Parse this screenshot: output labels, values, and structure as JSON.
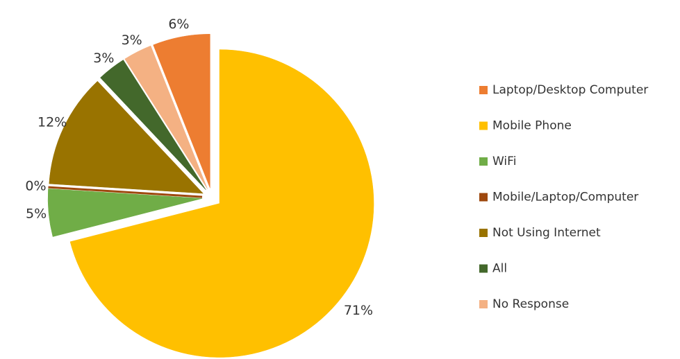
{
  "chart_data": {
    "type": "pie",
    "categories": [
      "Laptop/Desktop Computer",
      "Mobile Phone",
      "WiFi",
      "Mobile/Laptop/Computer",
      "Not Using Internet",
      "All",
      "No Response"
    ],
    "values": [
      6,
      71,
      5,
      0,
      12,
      3,
      3
    ],
    "value_labels": [
      "6%",
      "71%",
      "5%",
      "0%",
      "12%",
      "3%",
      "3%"
    ],
    "colors": [
      "#ed7d31",
      "#ffc000",
      "#70ad47",
      "#9e480e",
      "#997300",
      "#43682b",
      "#f4b183"
    ],
    "legend": "right"
  }
}
